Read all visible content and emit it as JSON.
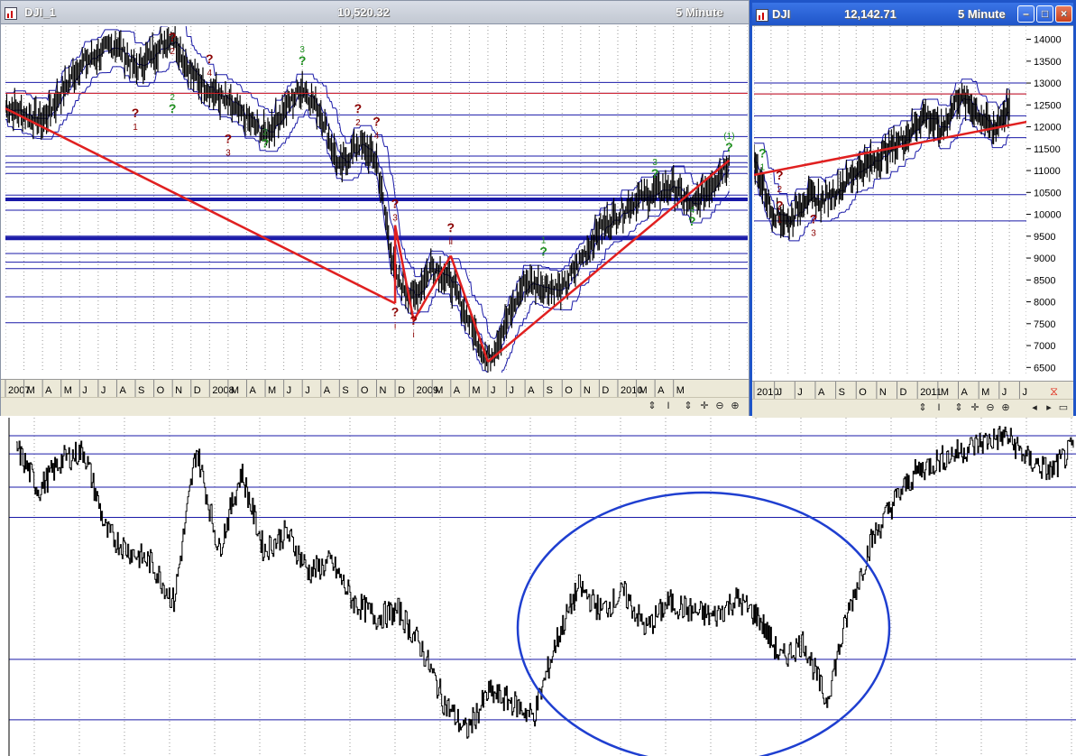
{
  "left_window": {
    "symbol": "DJI_1",
    "price": "10,520.32",
    "interval": "5 Minute",
    "x_labels": [
      "2007",
      "M",
      "A",
      "M",
      "J",
      "J",
      "A",
      "S",
      "O",
      "N",
      "D",
      "2008",
      "M",
      "A",
      "M",
      "J",
      "J",
      "A",
      "S",
      "O",
      "N",
      "D",
      "2009",
      "M",
      "A",
      "M",
      "J",
      "J",
      "A",
      "S",
      "O",
      "N",
      "D",
      "2010",
      "M",
      "A",
      "M"
    ]
  },
  "right_window": {
    "symbol": "DJI",
    "price": "12,142.71",
    "interval": "5 Minute",
    "x_labels": [
      "2010",
      "J",
      "J",
      "A",
      "S",
      "O",
      "N",
      "D",
      "2011",
      "M",
      "A",
      "M",
      "J",
      "J"
    ],
    "y_labels": [
      "14000",
      "13500",
      "13000",
      "12500",
      "12000",
      "11500",
      "11000",
      "10500",
      "10000",
      "9500",
      "9000",
      "8500",
      "8000",
      "7500",
      "7000",
      "6500"
    ]
  },
  "toolbar_glyphs": [
    "⇕",
    "I",
    "⇕",
    "✛",
    "⊖",
    "⊕"
  ],
  "right_nav_glyphs": [
    "◂",
    "▸",
    "▭"
  ],
  "colors": {
    "price": "#000000",
    "bands": "#1a1aa8",
    "hlines": "#1a1aa8",
    "trend": "#e02020",
    "wave_red": "#8b0000",
    "wave_green": "#1e8f1e",
    "circle": "#1f3fd0"
  },
  "chart_data": [
    {
      "type": "line",
      "title": "DJI_1",
      "x_axis": "2007 – Apr 2010",
      "ylim": [
        6300,
        14300
      ],
      "series": [
        {
          "name": "DJI_1",
          "x": [
            "2007-01",
            "2007-03",
            "2007-05",
            "2007-07",
            "2007-08",
            "2007-10",
            "2007-11",
            "2008-01",
            "2008-03",
            "2008-05",
            "2008-06",
            "2008-07",
            "2008-08",
            "2008-09",
            "2008-10",
            "2008-11",
            "2008-12",
            "2009-01",
            "2009-03",
            "2009-05",
            "2009-07",
            "2009-09",
            "2009-11",
            "2010-01",
            "2010-02",
            "2010-04"
          ],
          "values": [
            12450,
            12100,
            13400,
            13900,
            13300,
            14100,
            13200,
            12500,
            11800,
            12900,
            12300,
            11000,
            11600,
            11200,
            8500,
            8000,
            8800,
            8400,
            6550,
            8400,
            8200,
            9600,
            10300,
            10600,
            10100,
            11200
          ]
        }
      ],
      "horizontal_levels": [
        13000,
        12750,
        12250,
        11750,
        11300,
        11150,
        11050,
        10900,
        10400,
        10300,
        10050,
        9450,
        9400,
        9050,
        8850,
        8700,
        8050,
        7450
      ],
      "wave_labels_red": [
        {
          "text": "1",
          "x": "2007-08",
          "y": 12200
        },
        {
          "text": "2",
          "x": "2007-10",
          "y": 13950
        },
        {
          "text": "3",
          "x": "2008-01",
          "y": 11600
        },
        {
          "text": "4",
          "x": "2007-12",
          "y": 13450
        },
        {
          "text": "2",
          "x": "2008-08",
          "y": 12300
        },
        {
          "text": "4",
          "x": "2008-09",
          "y": 12000
        },
        {
          "text": "3",
          "x": "2008-10",
          "y": 10100
        },
        {
          "text": "i",
          "x": "2008-10",
          "y": 7600
        },
        {
          "text": "i",
          "x": "2008-11",
          "y": 7400
        },
        {
          "text": "ii",
          "x": "2009-01",
          "y": 9550
        }
      ],
      "wave_labels_green": [
        {
          "text": "2",
          "x": "2007-10",
          "y": 12300
        },
        {
          "text": "3",
          "x": "2008-05",
          "y": 13400
        },
        {
          "text": "2",
          "x": "2008-03",
          "y": 11500
        },
        {
          "text": "1",
          "x": "2009-06",
          "y": 9000
        },
        {
          "text": "3",
          "x": "2009-12",
          "y": 10800
        },
        {
          "text": "4",
          "x": "2010-02",
          "y": 9700
        },
        {
          "text": "(1)",
          "x": "2010-04",
          "y": 11400
        }
      ]
    },
    {
      "type": "line",
      "title": "DJI",
      "x_axis": "2010 – Jul 2011",
      "ylim": [
        6300,
        14300
      ],
      "series": [
        {
          "name": "DJI",
          "x": [
            "2010-04",
            "2010-05",
            "2010-06",
            "2010-07",
            "2010-08",
            "2010-09",
            "2010-10",
            "2010-11",
            "2010-12",
            "2011-01",
            "2011-02",
            "2011-03",
            "2011-04",
            "2011-05",
            "2011-06",
            "2011-07"
          ],
          "values": [
            11200,
            10100,
            9800,
            10400,
            10300,
            10600,
            11000,
            11200,
            11500,
            11800,
            12300,
            11900,
            12700,
            12400,
            11900,
            12500
          ]
        }
      ],
      "horizontal_levels": [
        13000,
        12750,
        12250,
        11750,
        10450,
        9850
      ],
      "wave_labels": [
        {
          "text": "1",
          "x": "2010-05",
          "y": 10100
        },
        {
          "text": "2",
          "x": "2010-05",
          "y": 10800
        },
        {
          "text": "3",
          "x": "2010-07",
          "y": 9800
        },
        {
          "text": "1",
          "x": "2010-04",
          "y": 11300
        }
      ]
    },
    {
      "type": "line",
      "title": "",
      "note": "lower indicator panel, no axis labels",
      "series": [
        {
          "name": "",
          "values": [
            0.96,
            0.82,
            0.92,
            0.95,
            0.68,
            0.62,
            0.58,
            0.45,
            0.96,
            0.62,
            0.88,
            0.62,
            0.68,
            0.55,
            0.58,
            0.45,
            0.4,
            0.42,
            0.3,
            0.12,
            0.02,
            0.15,
            0.12,
            0.07,
            0.32,
            0.5,
            0.42,
            0.48,
            0.36,
            0.45,
            0.42,
            0.4,
            0.46,
            0.4,
            0.26,
            0.32,
            0.12,
            0.42,
            0.65,
            0.78,
            0.88,
            0.92,
            0.95,
            0.98,
            1.0,
            0.92,
            0.88,
            0.96
          ]
        }
      ],
      "horizontal_levels": [
        1.0,
        0.94,
        0.83,
        0.73,
        0.26,
        0.06
      ],
      "annotation": "ellipse"
    }
  ]
}
